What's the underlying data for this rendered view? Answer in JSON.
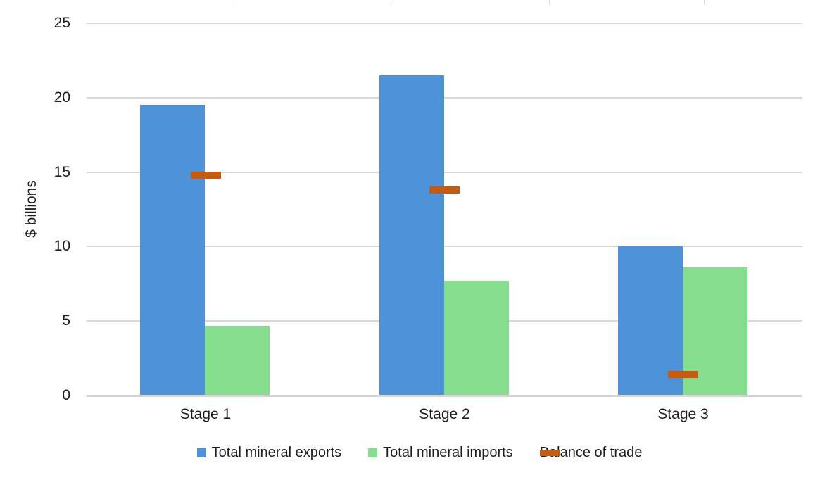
{
  "chart_data": {
    "type": "bar",
    "title": "",
    "categories": [
      "Stage 1",
      "Stage 2",
      "Stage 3"
    ],
    "series": [
      {
        "name": "Total mineral exports",
        "type": "bar",
        "marker": "square",
        "color": "#4E92D8",
        "values": [
          19.5,
          21.5,
          10.0
        ]
      },
      {
        "name": "Total mineral imports",
        "type": "bar",
        "marker": "square",
        "color": "#84DE8E",
        "values": [
          4.7,
          7.7,
          8.6
        ]
      },
      {
        "name": "Balance of trade",
        "type": "dash",
        "marker": "dash",
        "color": "#C55A11",
        "values": [
          14.8,
          13.8,
          1.4
        ]
      }
    ],
    "xlabel": "",
    "ylabel": "$ billions",
    "yticks": [
      0,
      5,
      10,
      15,
      20,
      25
    ],
    "ylim": [
      0,
      25
    ],
    "grid": true,
    "legend_position": "bottom",
    "gridline_color": "#D9D9D9"
  }
}
